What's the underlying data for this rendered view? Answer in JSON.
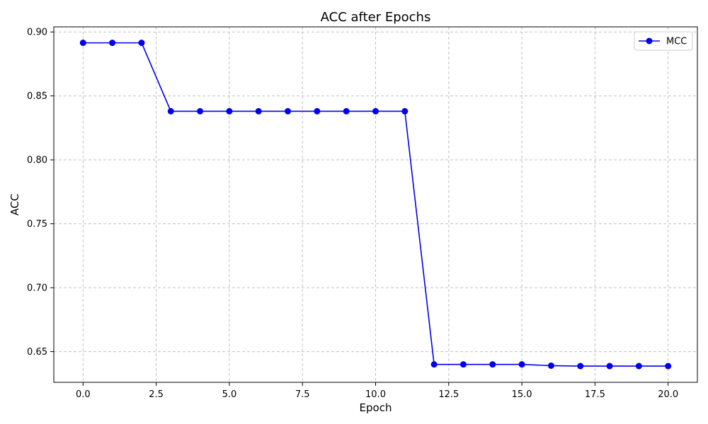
{
  "chart_data": {
    "type": "line",
    "title": "ACC after Epochs",
    "xlabel": "Epoch",
    "ylabel": "ACC",
    "xlim": [
      -1,
      21
    ],
    "ylim": [
      0.626,
      0.904
    ],
    "xticks": [
      0.0,
      2.5,
      5.0,
      7.5,
      10.0,
      12.5,
      15.0,
      17.5,
      20.0
    ],
    "xtick_labels": [
      "0.0",
      "2.5",
      "5.0",
      "7.5",
      "10.0",
      "12.5",
      "15.0",
      "17.5",
      "20.0"
    ],
    "yticks": [
      0.65,
      0.7,
      0.75,
      0.8,
      0.85,
      0.9
    ],
    "ytick_labels": [
      "0.65",
      "0.70",
      "0.75",
      "0.80",
      "0.85",
      "0.90"
    ],
    "grid": true,
    "legend_position": "top-right",
    "series": [
      {
        "name": "MCC",
        "color": "#0000ee",
        "marker": "circle",
        "x": [
          0,
          1,
          2,
          3,
          4,
          5,
          6,
          7,
          8,
          9,
          10,
          11,
          12,
          13,
          14,
          15,
          16,
          17,
          18,
          19,
          20
        ],
        "y": [
          0.8915,
          0.8915,
          0.8915,
          0.838,
          0.838,
          0.838,
          0.838,
          0.838,
          0.838,
          0.838,
          0.838,
          0.838,
          0.64,
          0.64,
          0.64,
          0.64,
          0.639,
          0.6387,
          0.6387,
          0.6387,
          0.6387
        ]
      }
    ]
  }
}
